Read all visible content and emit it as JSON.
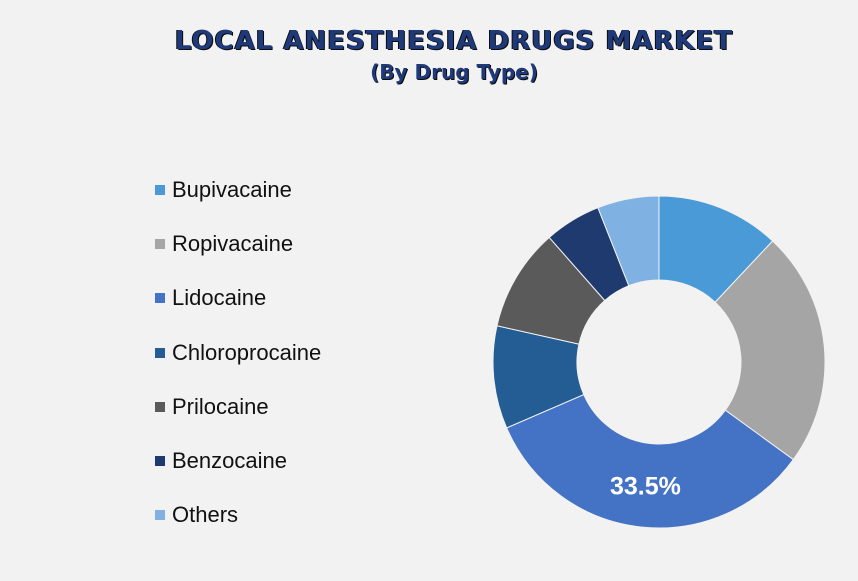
{
  "title": "LOCAL ANESTHESIA DRUGS MARKET",
  "subtitle": "(By Drug Type)",
  "chart_data": {
    "type": "pie",
    "title": "LOCAL ANESTHESIA DRUGS MARKET",
    "subtitle": "(By Drug Type)",
    "donut": true,
    "legend_position": "left",
    "categories": [
      "Bupivacaine",
      "Ropivacaine",
      "Lidocaine",
      "Chloroprocaine",
      "Prilocaine",
      "Benzocaine",
      "Others"
    ],
    "values": [
      12.0,
      23.0,
      33.5,
      10.0,
      10.0,
      5.5,
      6.0
    ],
    "colors": [
      "#4a9ad8",
      "#a5a5a5",
      "#4472c4",
      "#245d94",
      "#5a5a5a",
      "#1f3a6e",
      "#7fb2e3"
    ],
    "data_labels": [
      {
        "category": "Lidocaine",
        "text": "33.5%"
      }
    ]
  }
}
